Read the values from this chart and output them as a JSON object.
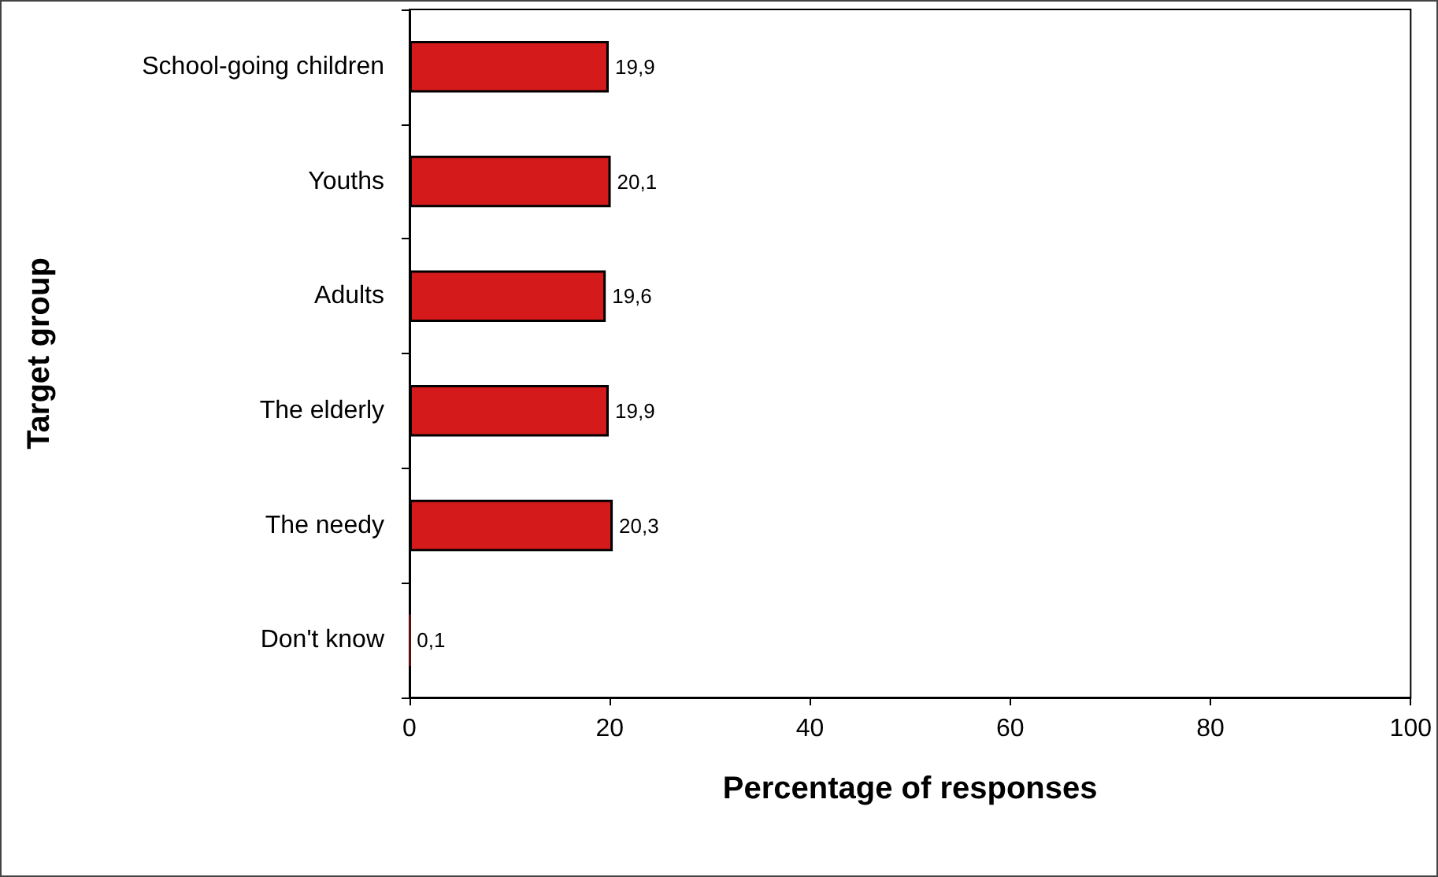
{
  "chart_data": {
    "type": "bar",
    "orientation": "horizontal",
    "xlabel": "Percentage of responses",
    "ylabel": "Target group",
    "categories": [
      "School-going children",
      "Youths",
      "Adults",
      "The elderly",
      "The needy",
      "Don't know"
    ],
    "values": [
      19.9,
      20.1,
      19.6,
      19.9,
      20.3,
      0.1
    ],
    "value_labels": [
      "19,9",
      "20,1",
      "19,6",
      "19,9",
      "20,3",
      "0,1"
    ],
    "color": "#d41a1a",
    "xlim": [
      0,
      100
    ],
    "xticks": [
      0,
      20,
      40,
      60,
      80,
      100
    ],
    "grid": false
  }
}
